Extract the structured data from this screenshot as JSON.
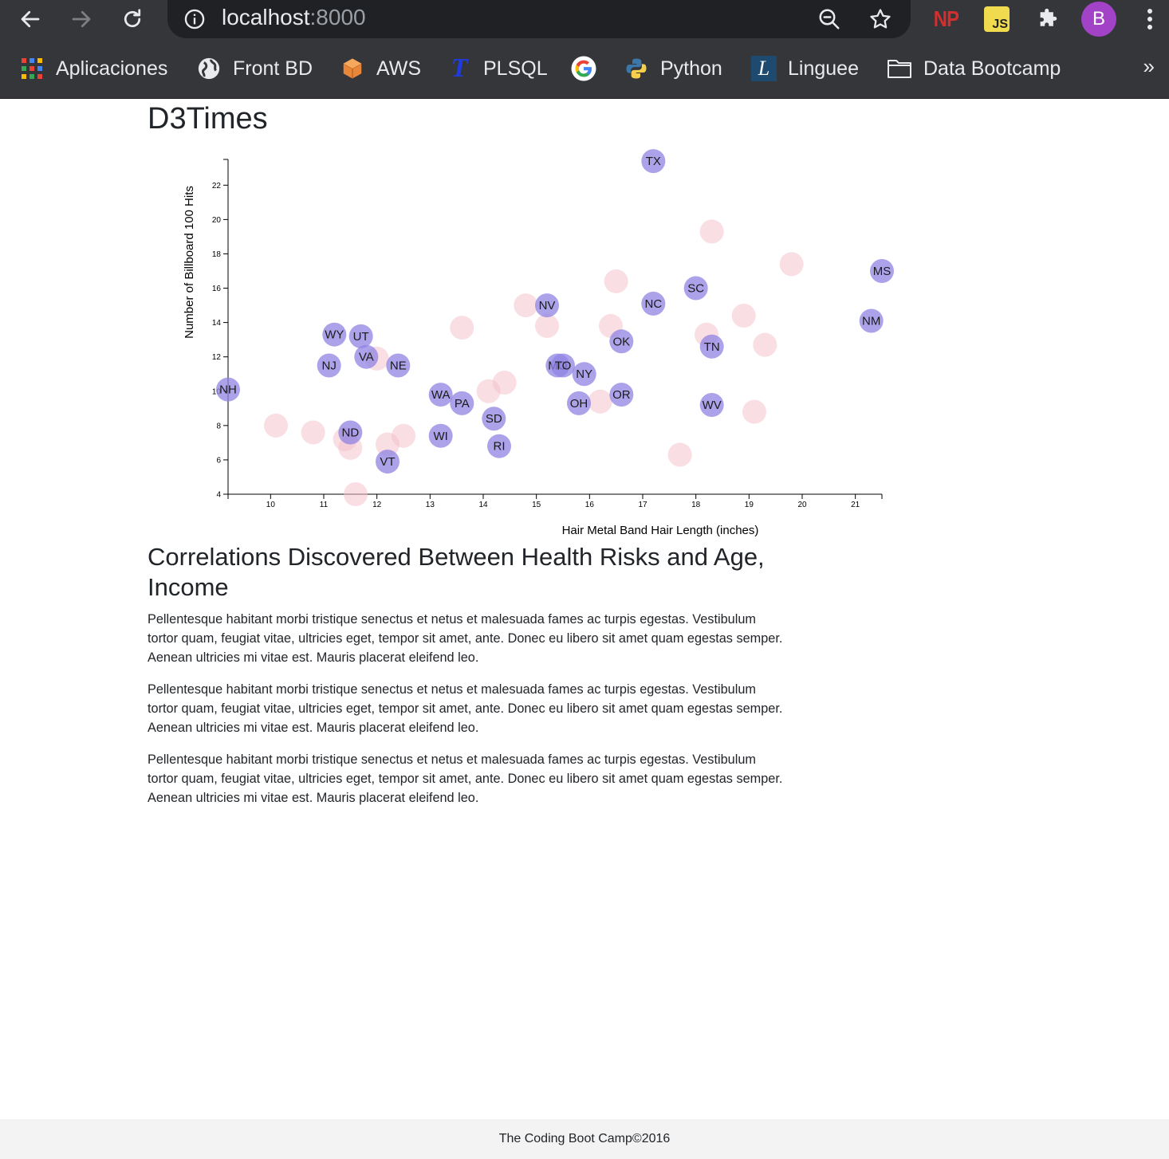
{
  "browser": {
    "url_host": "localhost",
    "url_port": ":8000",
    "profile_initial": "B",
    "ext_np_label": "NP",
    "ext_js_label": "JS",
    "bookmarks": [
      {
        "label": "Aplicaciones",
        "icon": "apps-grid-icon"
      },
      {
        "label": "Front BD",
        "icon": "globe-icon"
      },
      {
        "label": "AWS",
        "icon": "aws-cube-icon"
      },
      {
        "label": "PLSQL",
        "icon": "plsql-t-icon"
      },
      {
        "label": "",
        "icon": "google-icon"
      },
      {
        "label": "Python",
        "icon": "python-icon"
      },
      {
        "label": "Linguee",
        "icon": "linguee-icon"
      },
      {
        "label": "Data Bootcamp",
        "icon": "folder-icon"
      }
    ],
    "more_label": "»"
  },
  "page": {
    "title": "D3Times",
    "section_heading": "Correlations Discovered Between Health Risks and Age, Income",
    "paragraphs": [
      "Pellentesque habitant morbi tristique senectus et netus et malesuada fames ac turpis egestas. Vestibulum tortor quam, feugiat vitae, ultricies eget, tempor sit amet, ante. Donec eu libero sit amet quam egestas semper. Aenean ultricies mi vitae est. Mauris placerat eleifend leo.",
      "Pellentesque habitant morbi tristique senectus et netus et malesuada fames ac turpis egestas. Vestibulum tortor quam, feugiat vitae, ultricies eget, tempor sit amet, ante. Donec eu libero sit amet quam egestas semper. Aenean ultricies mi vitae est. Mauris placerat eleifend leo.",
      "Pellentesque habitant morbi tristique senectus et netus et malesuada fames ac turpis egestas. Vestibulum tortor quam, feugiat vitae, ultricies eget, tempor sit amet, ante. Donec eu libero sit amet quam egestas semper. Aenean ultricies mi vitae est. Mauris placerat eleifend leo."
    ],
    "footer": "The Coding Boot Camp©2016"
  },
  "colors": {
    "chrome_bg": "#35363a",
    "omnibox_bg": "#202124",
    "state_circle": "#8f83e3",
    "background_circle": "#f4c2cc",
    "profile_bg": "#a142c7"
  },
  "chart_data": {
    "type": "scatter",
    "title": "",
    "xlabel": "Hair Metal Band Hair Length (inches)",
    "ylabel": "Number of Billboard 100 Hits",
    "xlim": [
      9.2,
      21.5
    ],
    "ylim": [
      4,
      23.5
    ],
    "xticks": [
      10,
      11,
      12,
      13,
      14,
      15,
      16,
      17,
      18,
      19,
      20,
      21
    ],
    "yticks": [
      4,
      6,
      8,
      10,
      12,
      14,
      16,
      18,
      20,
      22
    ],
    "grid": false,
    "series": [
      {
        "points": [
          {
            "label": "TX",
            "x": 17.2,
            "y": 23.4
          },
          {
            "label": "MS",
            "x": 21.5,
            "y": 17.0
          },
          {
            "label": "SC",
            "x": 18.0,
            "y": 16.0
          },
          {
            "label": "NV",
            "x": 15.2,
            "y": 15.0
          },
          {
            "label": "NC",
            "x": 17.2,
            "y": 15.1
          },
          {
            "label": "NM",
            "x": 21.3,
            "y": 14.1
          },
          {
            "label": "WY",
            "x": 11.2,
            "y": 13.3
          },
          {
            "label": "UT",
            "x": 11.7,
            "y": 13.2
          },
          {
            "label": "OK",
            "x": 16.6,
            "y": 12.9
          },
          {
            "label": "TN",
            "x": 18.3,
            "y": 12.6
          },
          {
            "label": "VA",
            "x": 11.8,
            "y": 12.0
          },
          {
            "label": "NJ",
            "x": 11.1,
            "y": 11.5
          },
          {
            "label": "NE",
            "x": 12.4,
            "y": 11.5
          },
          {
            "label": "MO",
            "x": 15.4,
            "y": 11.5
          },
          {
            "label": "TO",
            "x": 15.5,
            "y": 11.5
          },
          {
            "label": "NY",
            "x": 15.9,
            "y": 11.0
          },
          {
            "label": "NH",
            "x": 9.2,
            "y": 10.1
          },
          {
            "label": "WA",
            "x": 13.2,
            "y": 9.8
          },
          {
            "label": "OR",
            "x": 16.6,
            "y": 9.8
          },
          {
            "label": "PA",
            "x": 13.6,
            "y": 9.3
          },
          {
            "label": "OH",
            "x": 15.8,
            "y": 9.3
          },
          {
            "label": "WV",
            "x": 18.3,
            "y": 9.2
          },
          {
            "label": "SD",
            "x": 14.2,
            "y": 8.4
          },
          {
            "label": "ND",
            "x": 11.5,
            "y": 7.6
          },
          {
            "label": "WI",
            "x": 13.2,
            "y": 7.4
          },
          {
            "label": "RI",
            "x": 14.3,
            "y": 6.8
          },
          {
            "label": "VT",
            "x": 12.2,
            "y": 5.9
          }
        ]
      },
      {
        "points": [
          {
            "x": 18.3,
            "y": 19.3
          },
          {
            "x": 19.8,
            "y": 17.4
          },
          {
            "x": 16.5,
            "y": 16.4
          },
          {
            "x": 14.8,
            "y": 15.0
          },
          {
            "x": 18.9,
            "y": 14.4
          },
          {
            "x": 13.6,
            "y": 13.7
          },
          {
            "x": 15.2,
            "y": 13.8
          },
          {
            "x": 16.4,
            "y": 13.8
          },
          {
            "x": 18.2,
            "y": 13.3
          },
          {
            "x": 19.3,
            "y": 12.7
          },
          {
            "x": 12.0,
            "y": 11.9
          },
          {
            "x": 14.4,
            "y": 10.5
          },
          {
            "x": 14.1,
            "y": 10.0
          },
          {
            "x": 16.2,
            "y": 9.4
          },
          {
            "x": 19.1,
            "y": 8.8
          },
          {
            "x": 10.1,
            "y": 8.0
          },
          {
            "x": 10.8,
            "y": 7.6
          },
          {
            "x": 12.5,
            "y": 7.4
          },
          {
            "x": 11.4,
            "y": 7.2
          },
          {
            "x": 11.5,
            "y": 6.7
          },
          {
            "x": 12.2,
            "y": 6.9
          },
          {
            "x": 17.7,
            "y": 6.3
          },
          {
            "x": 11.6,
            "y": 4.0
          }
        ]
      }
    ]
  }
}
